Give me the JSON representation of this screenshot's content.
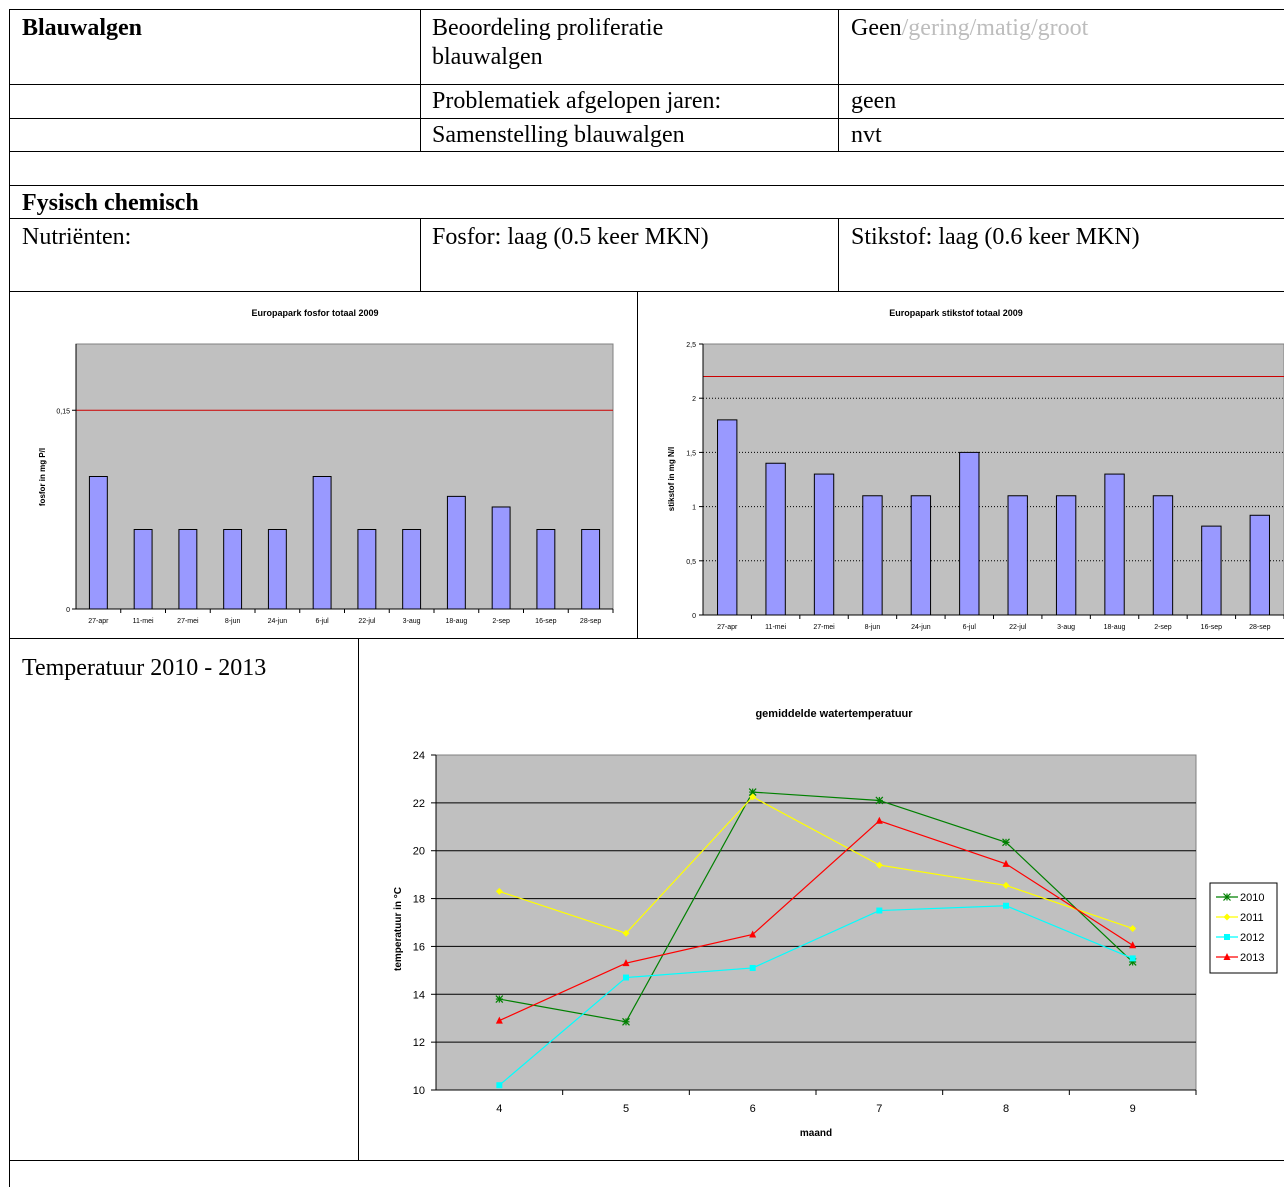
{
  "blauwalgen": {
    "heading": "Blauwalgen",
    "row1_label": "Beoordeling proliferatie blauwalgen",
    "row1_label_line1": "Beoordeling proliferatie",
    "row1_label_line2": "blauwalgen",
    "row1_value_selected": "Geen",
    "row1_value_rest": "/gering/matig/groot",
    "row2_label": "Problematiek afgelopen jaren:",
    "row2_value": "geen",
    "row3_label": "Samenstelling blauwalgen",
    "row3_value": "nvt"
  },
  "fysisch": {
    "heading": "Fysisch chemisch",
    "nutrients_label": "Nutriënten:",
    "fosfor": "Fosfor: laag (0.5 keer MKN)",
    "stikstof": "Stikstof: laag (0.6 keer MKN)"
  },
  "temperature_section": {
    "label": "Temperatuur 2010 - 2013"
  },
  "colors": {
    "bar_fill": "#9999ff",
    "plot_bg": "#c0c0c0",
    "norm_line": "#cc0000"
  },
  "chart_data": [
    {
      "type": "bar",
      "title": "Europapark fosfor totaal 2009",
      "ylabel": "fosfor in mg P/l",
      "xlabel": "",
      "categories": [
        "27-apr",
        "11-mei",
        "27-mei",
        "8-jun",
        "24-jun",
        "6-jul",
        "22-jul",
        "3-aug",
        "18-aug",
        "2-sep",
        "16-sep",
        "28-sep"
      ],
      "values": [
        0.1,
        0.06,
        0.06,
        0.06,
        0.06,
        0.1,
        0.06,
        0.06,
        0.085,
        0.077,
        0.06,
        0.06
      ],
      "ylim": [
        0,
        0.2
      ],
      "yticks": [
        0,
        0.15
      ],
      "ytick_labels": [
        "0",
        "0,15"
      ],
      "reference_line": 0.15,
      "grid": false
    },
    {
      "type": "bar",
      "title": "Europapark stikstof totaal 2009",
      "ylabel": "stikstof in mg N/l",
      "xlabel": "",
      "categories": [
        "27-apr",
        "11-mei",
        "27-mei",
        "8-jun",
        "24-jun",
        "6-jul",
        "22-jul",
        "3-aug",
        "18-aug",
        "2-sep",
        "16-sep",
        "28-sep"
      ],
      "values": [
        1.8,
        1.4,
        1.3,
        1.1,
        1.1,
        1.5,
        1.1,
        1.1,
        1.3,
        1.1,
        0.82,
        0.92
      ],
      "ylim": [
        0,
        2.5
      ],
      "yticks": [
        0,
        0.5,
        1,
        1.5,
        2,
        2.5
      ],
      "ytick_labels": [
        "0",
        "0,5",
        "1",
        "1,5",
        "2",
        "2,5"
      ],
      "reference_line": 2.2,
      "grid": true
    },
    {
      "type": "line",
      "title": "gemiddelde watertemperatuur",
      "xlabel": "maand",
      "ylabel": "temperatuur in °C",
      "x": [
        4,
        5,
        6,
        7,
        8,
        9
      ],
      "ylim": [
        10,
        24
      ],
      "yticks": [
        10,
        12,
        14,
        16,
        18,
        20,
        22,
        24
      ],
      "grid": true,
      "legend_position": "right",
      "series": [
        {
          "name": "2010",
          "values": [
            13.8,
            12.85,
            22.45,
            22.1,
            20.35,
            15.35
          ],
          "color": "#008000",
          "marker": "star"
        },
        {
          "name": "2011",
          "values": [
            18.3,
            16.55,
            22.25,
            19.4,
            18.55,
            16.75
          ],
          "color": "#ffff00",
          "marker": "diamond"
        },
        {
          "name": "2012",
          "values": [
            10.2,
            14.7,
            15.1,
            17.5,
            17.7,
            15.5
          ],
          "color": "#00ffff",
          "marker": "square"
        },
        {
          "name": "2013",
          "values": [
            12.9,
            15.3,
            16.5,
            21.25,
            19.45,
            16.05
          ],
          "color": "#ff0000",
          "marker": "triangle"
        }
      ]
    }
  ]
}
